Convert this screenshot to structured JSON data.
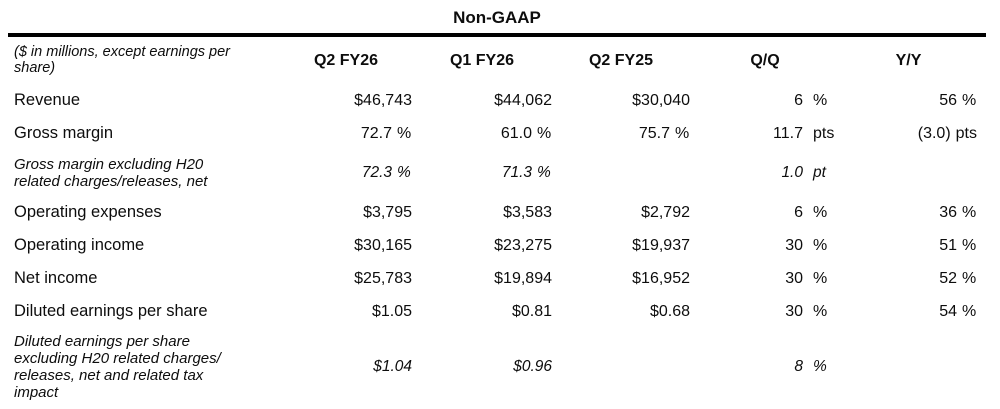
{
  "report": {
    "title": "Non-GAAP",
    "caption": "($ in millions, except earnings per\nshare)",
    "columns": [
      "Q2 FY26",
      "Q1 FY26",
      "Q2 FY25",
      "Q/Q",
      "Y/Y"
    ],
    "rows": [
      {
        "label": "Revenue",
        "italic": false,
        "cells": [
          {
            "v": "$46,743",
            "u": ""
          },
          {
            "v": "$44,062",
            "u": ""
          },
          {
            "v": "$30,040",
            "u": ""
          },
          {
            "v": "6",
            "u": "%"
          },
          {
            "v": "56",
            "u": "%"
          }
        ]
      },
      {
        "label": "Gross margin",
        "italic": false,
        "cells": [
          {
            "v": "72.7",
            "u": "%"
          },
          {
            "v": "61.0",
            "u": "%"
          },
          {
            "v": "75.7",
            "u": "%"
          },
          {
            "v": "11.7",
            "u": "pts"
          },
          {
            "v": "(3.0)",
            "u": "pts"
          }
        ]
      },
      {
        "label": "Gross margin excluding H20\nrelated charges/releases, net",
        "italic": true,
        "cells": [
          {
            "v": "72.3",
            "u": "%"
          },
          {
            "v": "71.3",
            "u": "%"
          },
          {
            "v": "",
            "u": ""
          },
          {
            "v": "1.0",
            "u": "pt"
          },
          {
            "v": "",
            "u": ""
          }
        ]
      },
      {
        "label": "Operating expenses",
        "italic": false,
        "cells": [
          {
            "v": "$3,795",
            "u": ""
          },
          {
            "v": "$3,583",
            "u": ""
          },
          {
            "v": "$2,792",
            "u": ""
          },
          {
            "v": "6",
            "u": "%"
          },
          {
            "v": "36",
            "u": "%"
          }
        ]
      },
      {
        "label": "Operating income",
        "italic": false,
        "cells": [
          {
            "v": "$30,165",
            "u": ""
          },
          {
            "v": "$23,275",
            "u": ""
          },
          {
            "v": "$19,937",
            "u": ""
          },
          {
            "v": "30",
            "u": "%"
          },
          {
            "v": "51",
            "u": "%"
          }
        ]
      },
      {
        "label": "Net income",
        "italic": false,
        "cells": [
          {
            "v": "$25,783",
            "u": ""
          },
          {
            "v": "$19,894",
            "u": ""
          },
          {
            "v": "$16,952",
            "u": ""
          },
          {
            "v": "30",
            "u": "%"
          },
          {
            "v": "52",
            "u": "%"
          }
        ]
      },
      {
        "label": "Diluted earnings per share",
        "italic": false,
        "cells": [
          {
            "v": "$1.05",
            "u": ""
          },
          {
            "v": "$0.81",
            "u": ""
          },
          {
            "v": "$0.68",
            "u": ""
          },
          {
            "v": "30",
            "u": "%"
          },
          {
            "v": "54",
            "u": "%"
          }
        ]
      },
      {
        "label": "Diluted earnings per share\nexcluding H20 related charges/\nreleases, net and related tax\nimpact",
        "italic": true,
        "cells": [
          {
            "v": "$1.04",
            "u": ""
          },
          {
            "v": "$0.96",
            "u": ""
          },
          {
            "v": "",
            "u": ""
          },
          {
            "v": "8",
            "u": "%"
          },
          {
            "v": "",
            "u": ""
          }
        ]
      }
    ],
    "colors": {
      "background": "#ffffff",
      "text": "#0d0d0d",
      "rule": "#000000"
    }
  }
}
